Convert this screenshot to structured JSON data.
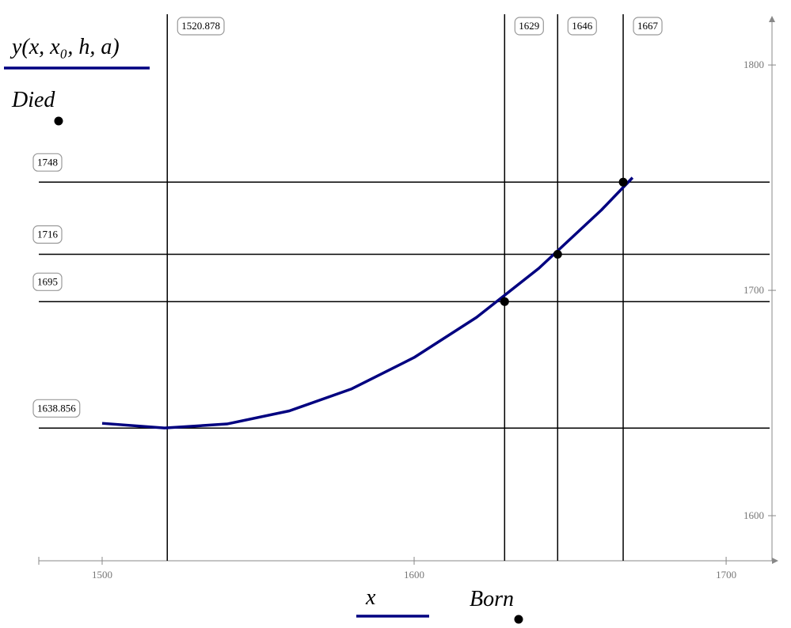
{
  "chart_data": {
    "type": "line",
    "y_label": "Died",
    "x_label": "x",
    "x_label2": "Born",
    "x": [
      1500,
      1520,
      1540,
      1560,
      1580,
      1600,
      1620,
      1640,
      1660,
      1670
    ],
    "series": [
      {
        "name": "y(x, x₀, h, a)",
        "color": "#000080",
        "values": [
          1641.0,
          1638.9,
          1640.7,
          1646.5,
          1656.3,
          1670.2,
          1688.0,
          1709.8,
          1735.6,
          1750.0
        ]
      }
    ],
    "points": {
      "color": "#000000",
      "x": [
        1629,
        1646,
        1667
      ],
      "values": [
        1695,
        1716,
        1748
      ]
    },
    "x_markers": [
      1520.878,
      1629,
      1646,
      1667
    ],
    "y_markers": [
      1748,
      1716,
      1695,
      1638.856
    ],
    "xlim": [
      1479.7,
      1714.7
    ],
    "ylim": [
      1580,
      1819
    ],
    "xticks": [
      1500,
      1600,
      1700
    ],
    "yticks": [
      1600,
      1700,
      1800
    ]
  }
}
